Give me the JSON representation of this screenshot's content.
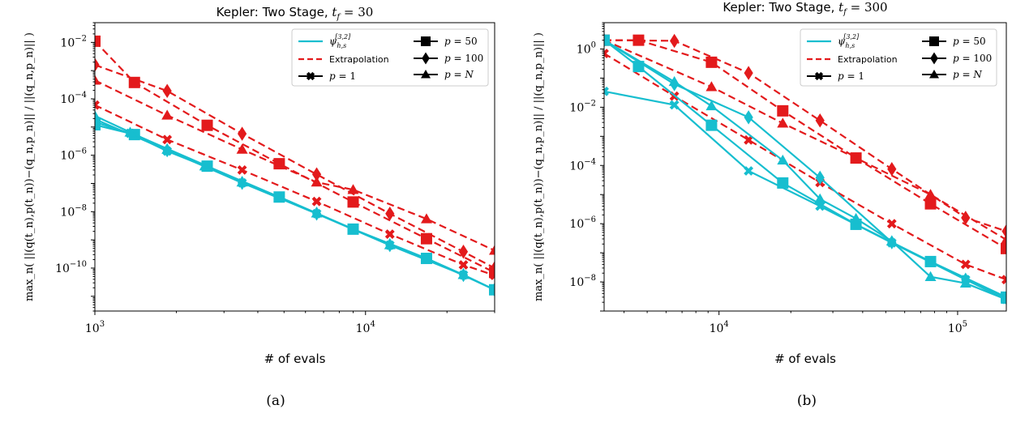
{
  "colors": {
    "model": "#17becf",
    "extrapolation": "#e31a1c",
    "axis": "#000000"
  },
  "legend": {
    "model": "ψh,s[3,2]",
    "extrapolation": "Extrapolation",
    "markers": [
      {
        "label": "p = 1",
        "marker": "x"
      },
      {
        "label": "p = 50",
        "marker": "square"
      },
      {
        "label": "p = 100",
        "marker": "diamond"
      },
      {
        "label": "p = N",
        "marker": "triangle"
      }
    ]
  },
  "chart_data": [
    {
      "type": "line",
      "title": "Kepler: Two Stage, t_f = 30",
      "caption": "(a)",
      "xlabel": "# of evals",
      "ylabel": "max_n( ||(q(t_n),p(t_n))−(q_n,p_n)|| / ||(q_n,p_n)|| )",
      "xscale": "log",
      "yscale": "log",
      "xlim": [
        1000,
        30000
      ],
      "ylim": [
        3e-12,
        0.05
      ],
      "xticks": [
        {
          "v": 1000,
          "label": "10^3"
        },
        {
          "v": 10000,
          "label": "10^4"
        }
      ],
      "yticks": [
        {
          "v": 1e-10,
          "label": "10^-10"
        },
        {
          "v": 1e-08,
          "label": "10^-8"
        },
        {
          "v": 1e-06,
          "label": "10^-6"
        },
        {
          "v": 0.0001,
          "label": "10^-4"
        },
        {
          "v": 0.01,
          "label": "10^-2"
        }
      ],
      "series": [
        {
          "name": "Model p = 1",
          "group": "model",
          "marker": "x",
          "x": [
            1000,
            1350,
            1850,
            2550,
            3500,
            4800,
            6600,
            9000,
            12300,
            16800,
            23000,
            30000
          ],
          "y": [
            1.5e-05,
            6e-06,
            1.4e-06,
            4.1e-07,
            1.05e-07,
            3.3e-08,
            8.5e-09,
            2.4e-09,
            6.5e-10,
            2.2e-10,
            5.7e-11,
            1.7e-11
          ]
        },
        {
          "name": "Model p = 50",
          "group": "model",
          "marker": "square",
          "x": [
            1000,
            1400,
            2600,
            4800,
            9000,
            16800,
            30000
          ],
          "y": [
            1.2e-05,
            5.4e-06,
            4.1e-07,
            3.3e-08,
            2.4e-09,
            2.2e-10,
            1.7e-11
          ]
        },
        {
          "name": "Model p = 100",
          "group": "model",
          "marker": "diamond",
          "x": [
            1000,
            1850,
            3500,
            6600,
            12300,
            23000,
            30000
          ],
          "y": [
            1.9e-05,
            1.5e-06,
            1.05e-07,
            8.5e-09,
            6.5e-10,
            5.7e-11,
            1.7e-11
          ]
        },
        {
          "name": "Model p = N",
          "group": "model",
          "marker": "triangle",
          "x": [
            1000,
            1350,
            1850,
            2550,
            3500,
            4800,
            6600,
            9000,
            12300,
            16800,
            23000,
            30000
          ],
          "y": [
            2.5e-05,
            6.5e-06,
            1.6e-06,
            4.1e-07,
            1.1e-07,
            3.3e-08,
            8.8e-09,
            2.4e-09,
            6.6e-10,
            2.2e-10,
            5.8e-11,
            1.7e-11
          ]
        },
        {
          "name": "Extrapolation p = 1",
          "group": "extrapolation",
          "marker": "x",
          "x": [
            1000,
            1850,
            3500,
            6600,
            12300,
            23000,
            30000
          ],
          "y": [
            6e-05,
            3.6e-06,
            3e-07,
            2.3e-08,
            1.6e-09,
            1.3e-10,
            5.5e-11
          ]
        },
        {
          "name": "Extrapolation p = 50",
          "group": "extrapolation",
          "marker": "square",
          "x": [
            1000,
            1400,
            2600,
            4800,
            9000,
            16800,
            30000
          ],
          "y": [
            0.011,
            0.00038,
            1.15e-05,
            5e-07,
            2.2e-08,
            1.1e-09,
            7e-11
          ]
        },
        {
          "name": "Extrapolation p = 100",
          "group": "extrapolation",
          "marker": "diamond",
          "x": [
            1000,
            1850,
            3500,
            6600,
            12300,
            23000,
            30000
          ],
          "y": [
            0.0016,
            0.00019,
            5.8e-06,
            2.1e-07,
            8.5e-09,
            3.8e-10,
            1e-10
          ]
        },
        {
          "name": "Extrapolation p = N",
          "group": "extrapolation",
          "marker": "triangle",
          "x": [
            1000,
            1850,
            3500,
            6600,
            9000,
            16800,
            30000
          ],
          "y": [
            0.00045,
            2.6e-05,
            1.6e-06,
            1.1e-07,
            6e-08,
            5.5e-09,
            4.2e-10
          ]
        }
      ]
    },
    {
      "type": "line",
      "title": "Kepler: Two Stage, t_f = 300",
      "caption": "(b)",
      "xlabel": "# of evals",
      "ylabel": "max_n( ||(q(t_n),p(t_n))−(q_n,p_n)|| / ||(q_n,p_n)|| )",
      "xscale": "log",
      "yscale": "log",
      "xlim": [
        3300,
        160000
      ],
      "ylim": [
        1e-09,
        8
      ],
      "xticks": [
        {
          "v": 10000,
          "label": "10^4"
        },
        {
          "v": 100000,
          "label": "10^5"
        }
      ],
      "yticks": [
        {
          "v": 1e-08,
          "label": "10^-8"
        },
        {
          "v": 1e-06,
          "label": "10^-6"
        },
        {
          "v": 0.0001,
          "label": "10^-4"
        },
        {
          "v": 0.01,
          "label": "10^-2"
        },
        {
          "v": 1,
          "label": "10^0"
        }
      ],
      "series": [
        {
          "name": "Model p = 1",
          "group": "model",
          "marker": "x",
          "x": [
            3300,
            6500,
            13300,
            26500,
            53000,
            108000,
            160000
          ],
          "y": [
            0.035,
            0.012,
            6.5e-05,
            4e-06,
            2.2e-07,
            1.2e-08,
            2.5e-09
          ]
        },
        {
          "name": "Model p = 50",
          "group": "model",
          "marker": "square",
          "x": [
            3300,
            4600,
            9300,
            18500,
            37500,
            77000,
            160000
          ],
          "y": [
            2,
            0.25,
            0.0024,
            2.5e-05,
            9.5e-07,
            5e-08,
            3e-09
          ]
        },
        {
          "name": "Model p = 100",
          "group": "model",
          "marker": "diamond",
          "x": [
            3300,
            6500,
            13300,
            26500,
            53000,
            108000,
            160000
          ],
          "y": [
            2,
            0.062,
            0.0045,
            3.8e-05,
            2.3e-07,
            1.2e-08,
            2.8e-09
          ]
        },
        {
          "name": "Model p = N",
          "group": "model",
          "marker": "triangle",
          "x": [
            3300,
            6500,
            9300,
            18500,
            26500,
            37500,
            53000,
            77000,
            108000,
            160000
          ],
          "y": [
            2,
            0.075,
            0.011,
            0.00015,
            7e-06,
            1.5e-06,
            2.5e-07,
            1.5e-08,
            9e-09,
            2.5e-09
          ]
        },
        {
          "name": "Extrapolation p = 1",
          "group": "extrapolation",
          "marker": "x",
          "x": [
            3300,
            6500,
            13300,
            26500,
            53000,
            108000,
            160000
          ],
          "y": [
            0.7,
            0.024,
            0.00075,
            2.6e-05,
            1e-06,
            4e-08,
            1.2e-08
          ]
        },
        {
          "name": "Extrapolation p = 50",
          "group": "extrapolation",
          "marker": "square",
          "x": [
            3300,
            4600,
            9300,
            18500,
            37500,
            77000,
            160000
          ],
          "y": [
            2,
            2,
            0.35,
            0.0075,
            0.00018,
            4.8e-06,
            1.4e-07
          ]
        },
        {
          "name": "Extrapolation p = 100",
          "group": "extrapolation",
          "marker": "diamond",
          "x": [
            3300,
            6500,
            13300,
            26500,
            53000,
            108000,
            160000
          ],
          "y": [
            2,
            1.9,
            0.15,
            0.0035,
            7.5e-05,
            1.6e-06,
            5.5e-07
          ]
        },
        {
          "name": "Extrapolation p = N",
          "group": "extrapolation",
          "marker": "triangle",
          "x": [
            3300,
            9300,
            18500,
            37500,
            77000,
            160000
          ],
          "y": [
            2,
            0.05,
            0.0028,
            0.00018,
            1e-05,
            2.8e-07
          ]
        }
      ]
    }
  ]
}
